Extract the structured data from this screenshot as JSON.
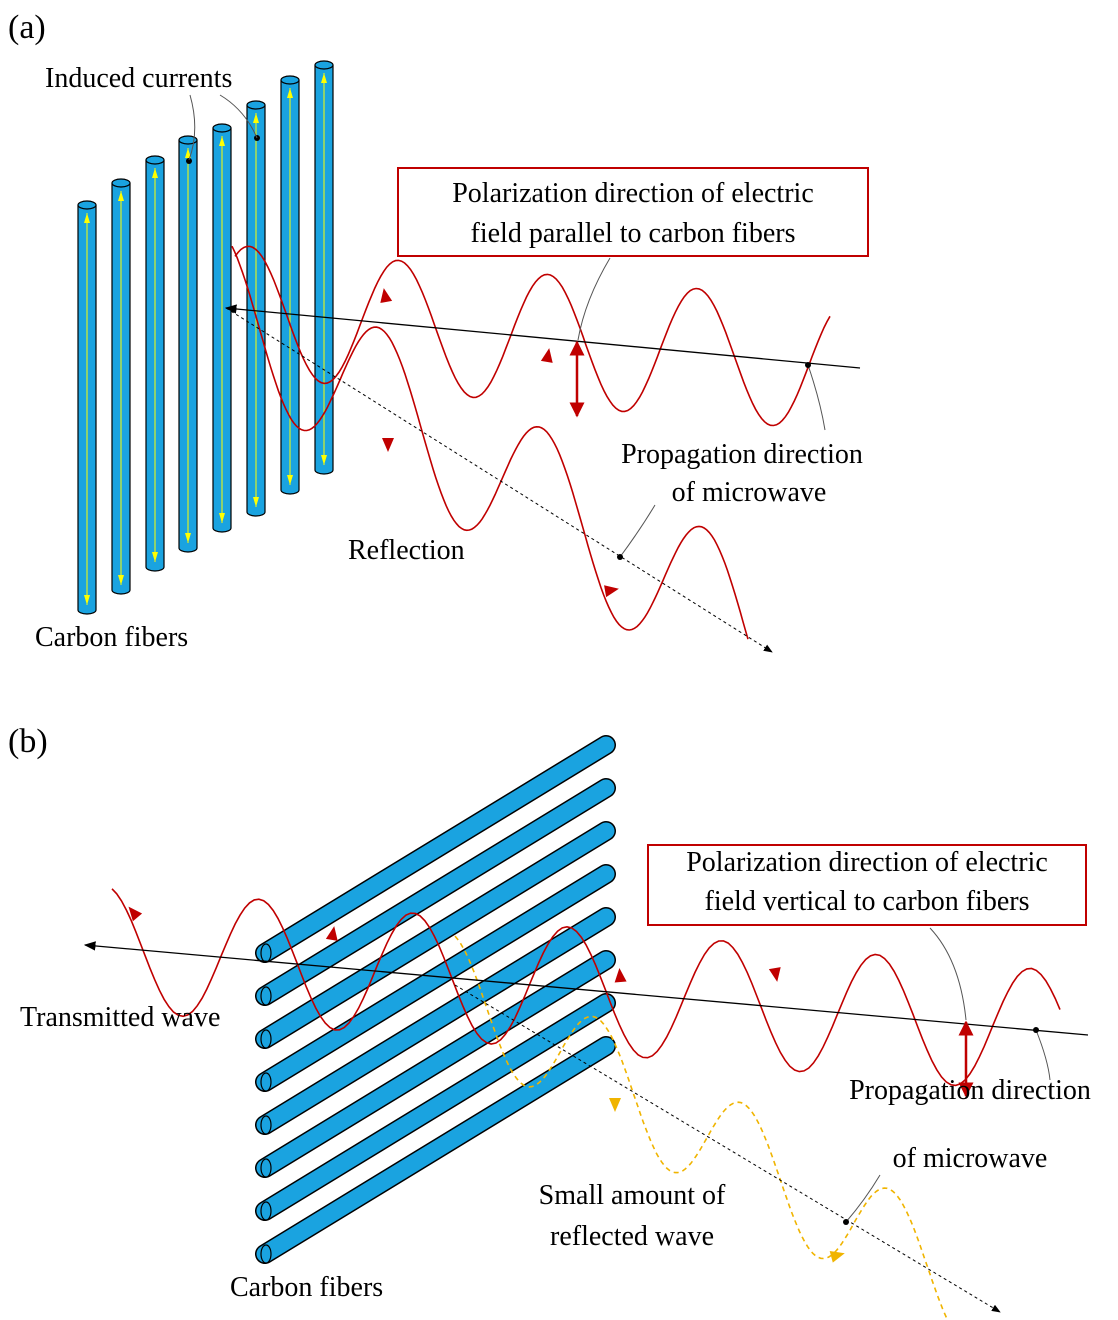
{
  "panel_a": {
    "label": "(a)",
    "induced_currents": "Induced currents",
    "polarization": [
      "Polarization direction of electric",
      "field parallel to carbon fibers"
    ],
    "propagation": [
      "Propagation direction",
      "of microwave"
    ],
    "reflection": "Reflection",
    "carbon_fibers": "Carbon fibers"
  },
  "panel_b": {
    "label": "(b)",
    "polarization": [
      "Polarization direction of electric",
      "field vertical to carbon fibers"
    ],
    "transmitted": "Transmitted wave",
    "propagation": [
      "Propagation direction",
      "of microwave"
    ],
    "reflected": [
      "Small amount of",
      "reflected wave"
    ],
    "carbon_fibers": "Carbon fibers"
  }
}
